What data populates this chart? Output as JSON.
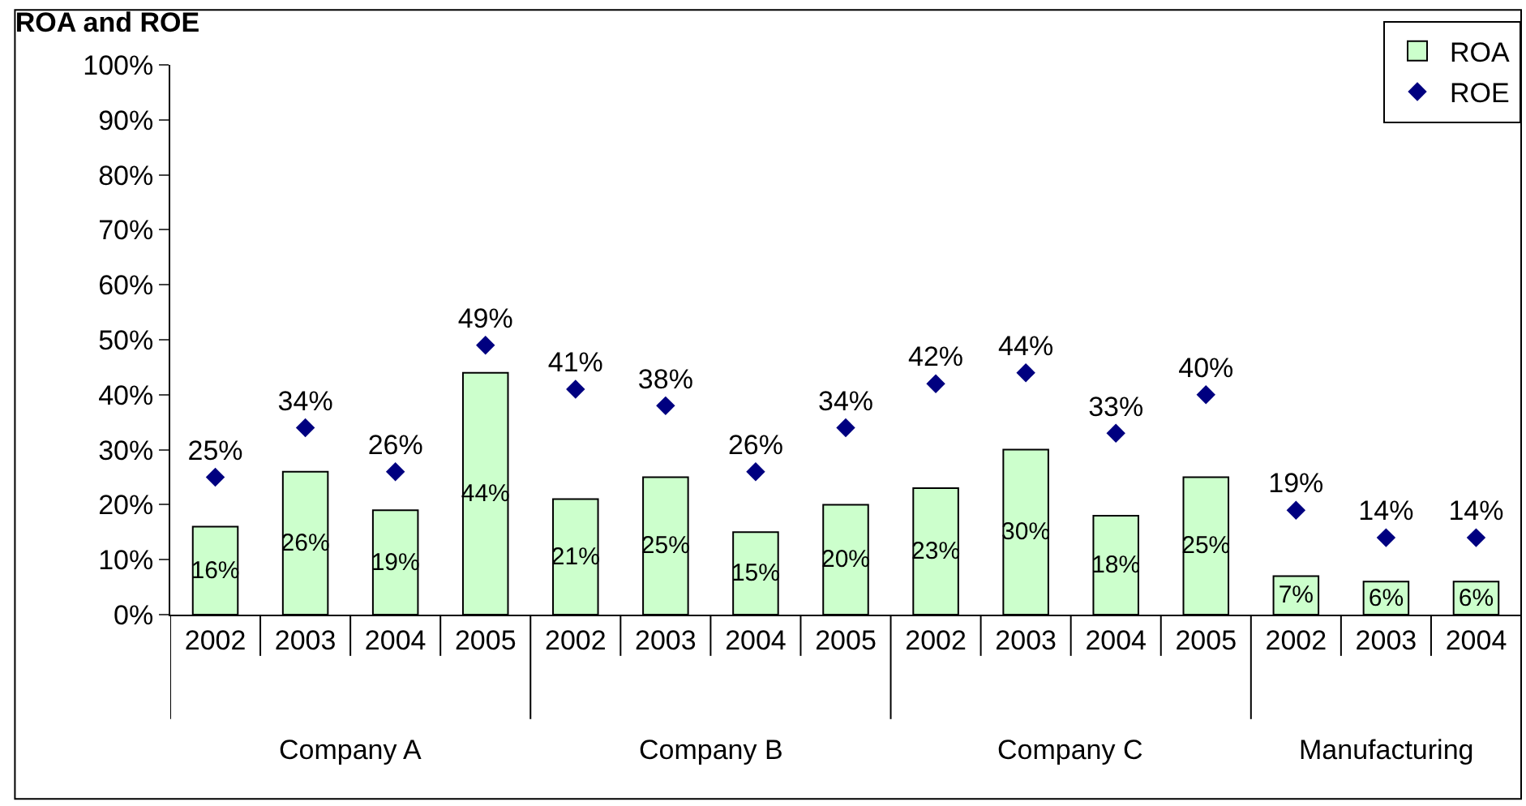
{
  "chart_data": {
    "type": "bar",
    "title": "ROA and ROE",
    "categories": [
      "2002",
      "2003",
      "2004",
      "2005",
      "2002",
      "2003",
      "2004",
      "2005",
      "2002",
      "2003",
      "2004",
      "2005",
      "2002",
      "2003",
      "2004"
    ],
    "annotations": [
      "Company A",
      "Company B",
      "Company C",
      "Manufacturing"
    ],
    "series": [
      {
        "name": "ROA",
        "color": "#ccffcc",
        "values": [
          16,
          26,
          19,
          44,
          21,
          25,
          15,
          20,
          23,
          30,
          18,
          25,
          7,
          6,
          6
        ],
        "value_labels": [
          "16%",
          "26%",
          "19%",
          "44%",
          "21%",
          "25%",
          "15%",
          "20%",
          "23%",
          "30%",
          "18%",
          "25%",
          "7%",
          "6%",
          "6%"
        ]
      },
      {
        "name": "ROE",
        "type": "scatter",
        "color": "#000080",
        "values": [
          25,
          34,
          26,
          49,
          41,
          38,
          26,
          34,
          42,
          44,
          33,
          40,
          19,
          14,
          14
        ],
        "value_labels": [
          "25%",
          "34%",
          "26%",
          "49%",
          "41%",
          "38%",
          "26%",
          "34%",
          "42%",
          "44%",
          "33%",
          "40%",
          "19%",
          "14%",
          "14%"
        ]
      }
    ],
    "ylim": [
      0,
      100
    ],
    "yticks": [
      {
        "value": 0,
        "label": "0%"
      },
      {
        "value": 10,
        "label": "10%"
      },
      {
        "value": 20,
        "label": "20%"
      },
      {
        "value": 30,
        "label": "30%"
      },
      {
        "value": 40,
        "label": "40%"
      },
      {
        "value": 50,
        "label": "50%"
      },
      {
        "value": 60,
        "label": "60%"
      },
      {
        "value": 70,
        "label": "70%"
      },
      {
        "value": 80,
        "label": "80%"
      },
      {
        "value": 90,
        "label": "90%"
      },
      {
        "value": 100,
        "label": "100%"
      }
    ],
    "grid": false,
    "legend": "top right",
    "marker": "diamond"
  }
}
